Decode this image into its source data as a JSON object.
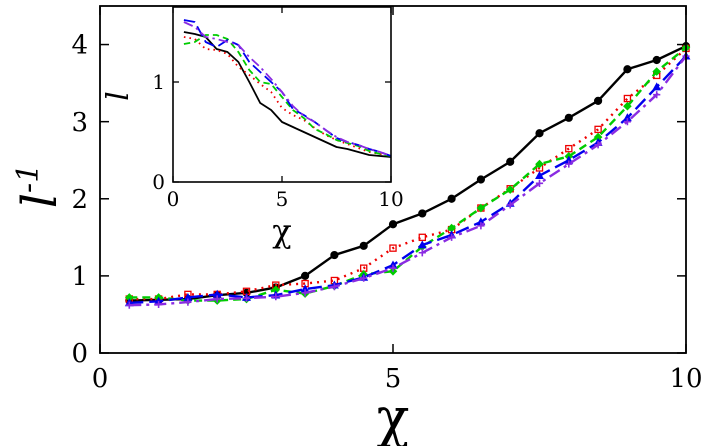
{
  "chart_data": [
    {
      "type": "line",
      "id": "main",
      "xlabel": "χ",
      "ylabel": "l⁻¹",
      "xlim": [
        0,
        10
      ],
      "ylim": [
        0,
        4.5
      ],
      "xticks": [
        0,
        5,
        10
      ],
      "yticks": [
        0,
        1,
        2,
        3,
        4
      ],
      "grid": false,
      "series": [
        {
          "color": "#000000",
          "dash": "solid",
          "marker": "circle",
          "x": [
            0.5,
            1,
            1.5,
            2,
            2.5,
            3,
            3.5,
            4,
            4.5,
            5,
            5.5,
            6,
            6.5,
            7,
            7.5,
            8,
            8.5,
            9,
            9.5,
            10
          ],
          "y": [
            0.68,
            0.69,
            0.7,
            0.75,
            0.78,
            0.85,
            1.0,
            1.27,
            1.39,
            1.67,
            1.81,
            2.0,
            2.25,
            2.48,
            2.85,
            3.05,
            3.27,
            3.68,
            3.8,
            3.98
          ]
        },
        {
          "color": "#ee0000",
          "dash": "dotted",
          "marker": "square",
          "x": [
            0.5,
            1,
            1.5,
            2,
            2.5,
            3,
            3.5,
            4,
            4.5,
            5,
            5.5,
            6,
            6.5,
            7,
            7.5,
            8,
            8.5,
            9,
            9.5,
            10
          ],
          "y": [
            0.7,
            0.7,
            0.76,
            0.76,
            0.8,
            0.88,
            0.9,
            0.94,
            1.1,
            1.36,
            1.5,
            1.6,
            1.88,
            2.13,
            2.4,
            2.65,
            2.9,
            3.3,
            3.6,
            3.95
          ]
        },
        {
          "color": "#00cc00",
          "dash": "dashed",
          "marker": "diamond",
          "x": [
            0.5,
            1,
            1.5,
            2,
            2.5,
            3,
            3.5,
            4,
            4.5,
            5,
            5.5,
            6,
            6.5,
            7,
            7.5,
            8,
            8.5,
            9,
            9.5,
            10
          ],
          "y": [
            0.72,
            0.72,
            0.68,
            0.68,
            0.7,
            0.82,
            0.77,
            0.87,
            1.02,
            1.06,
            1.38,
            1.62,
            1.88,
            2.12,
            2.45,
            2.55,
            2.8,
            3.2,
            3.65,
            3.96
          ]
        },
        {
          "color": "#0000ee",
          "dash": "longdash",
          "marker": "triangle",
          "x": [
            0.5,
            1,
            1.5,
            2,
            2.5,
            3,
            3.5,
            4,
            4.5,
            5,
            5.5,
            6,
            6.5,
            7,
            7.5,
            8,
            8.5,
            9,
            9.5,
            10
          ],
          "y": [
            0.65,
            0.67,
            0.72,
            0.76,
            0.72,
            0.75,
            0.83,
            0.88,
            0.98,
            1.14,
            1.4,
            1.53,
            1.7,
            1.94,
            2.3,
            2.5,
            2.73,
            3.05,
            3.45,
            3.85
          ]
        },
        {
          "color": "#8a2be2",
          "dash": "dashdot",
          "marker": "plus",
          "x": [
            0.5,
            1,
            1.5,
            2,
            2.5,
            3,
            3.5,
            4,
            4.5,
            5,
            5.5,
            6,
            6.5,
            7,
            7.5,
            8,
            8.5,
            9,
            9.5,
            10
          ],
          "y": [
            0.62,
            0.63,
            0.66,
            0.7,
            0.71,
            0.73,
            0.78,
            0.86,
            0.97,
            1.1,
            1.3,
            1.5,
            1.65,
            1.92,
            2.2,
            2.45,
            2.7,
            3.0,
            3.35,
            3.85
          ]
        }
      ]
    },
    {
      "type": "line",
      "id": "inset",
      "xlabel": "χ",
      "ylabel": "l",
      "xlim": [
        0,
        10
      ],
      "ylim": [
        0,
        1.75
      ],
      "xticks": [
        0,
        5,
        10
      ],
      "yticks": [
        0,
        1
      ],
      "grid": false,
      "series": [
        {
          "color": "#000000",
          "dash": "solid",
          "marker": "none",
          "x": [
            0.5,
            1,
            1.5,
            2,
            2.5,
            3,
            3.5,
            4,
            4.5,
            5,
            5.5,
            6,
            6.5,
            7,
            7.5,
            8,
            8.5,
            9,
            9.5,
            10
          ],
          "y": [
            1.5,
            1.48,
            1.45,
            1.33,
            1.3,
            1.2,
            1.0,
            0.79,
            0.72,
            0.6,
            0.55,
            0.5,
            0.45,
            0.4,
            0.35,
            0.33,
            0.3,
            0.27,
            0.26,
            0.25
          ]
        },
        {
          "color": "#ee0000",
          "dash": "dotted",
          "marker": "none",
          "x": [
            0.5,
            1,
            1.5,
            2,
            2.5,
            3,
            3.5,
            4,
            4.5,
            5,
            5.5,
            6,
            6.5,
            7,
            7.5,
            8,
            8.5,
            9,
            9.5,
            10
          ],
          "y": [
            1.45,
            1.43,
            1.33,
            1.32,
            1.28,
            1.15,
            1.07,
            0.98,
            0.9,
            0.74,
            0.67,
            0.62,
            0.54,
            0.47,
            0.42,
            0.38,
            0.34,
            0.3,
            0.28,
            0.26
          ]
        },
        {
          "color": "#00cc00",
          "dash": "dashed",
          "marker": "none",
          "x": [
            0.5,
            1,
            1.5,
            2,
            2.5,
            3,
            3.5,
            4,
            4.5,
            5,
            5.5,
            6,
            6.5,
            7,
            7.5,
            8,
            8.5,
            9,
            9.5,
            10
          ],
          "y": [
            1.38,
            1.4,
            1.47,
            1.47,
            1.43,
            1.3,
            1.12,
            1.0,
            0.98,
            0.85,
            0.72,
            0.64,
            0.53,
            0.48,
            0.42,
            0.39,
            0.36,
            0.31,
            0.28,
            0.26
          ]
        },
        {
          "color": "#0000ee",
          "dash": "longdash",
          "marker": "none",
          "x": [
            0.5,
            1,
            1.5,
            2,
            2.5,
            3,
            3.5,
            4,
            4.5,
            5,
            5.5,
            6,
            6.5,
            7,
            7.5,
            8,
            8.5,
            9,
            9.5,
            10
          ],
          "y": [
            1.62,
            1.6,
            1.4,
            1.35,
            1.42,
            1.37,
            1.2,
            1.1,
            1.0,
            0.9,
            0.73,
            0.67,
            0.6,
            0.52,
            0.44,
            0.4,
            0.37,
            0.33,
            0.3,
            0.26
          ]
        },
        {
          "color": "#8a2be2",
          "dash": "dashdot",
          "marker": "none",
          "x": [
            0.5,
            1,
            1.5,
            2,
            2.5,
            3,
            3.5,
            4,
            4.5,
            5,
            5.5,
            6,
            6.5,
            7,
            7.5,
            8,
            8.5,
            9,
            9.5,
            10
          ],
          "y": [
            1.6,
            1.55,
            1.45,
            1.43,
            1.4,
            1.37,
            1.25,
            1.15,
            1.03,
            0.9,
            0.76,
            0.66,
            0.6,
            0.52,
            0.45,
            0.4,
            0.37,
            0.33,
            0.3,
            0.26
          ]
        }
      ]
    }
  ]
}
